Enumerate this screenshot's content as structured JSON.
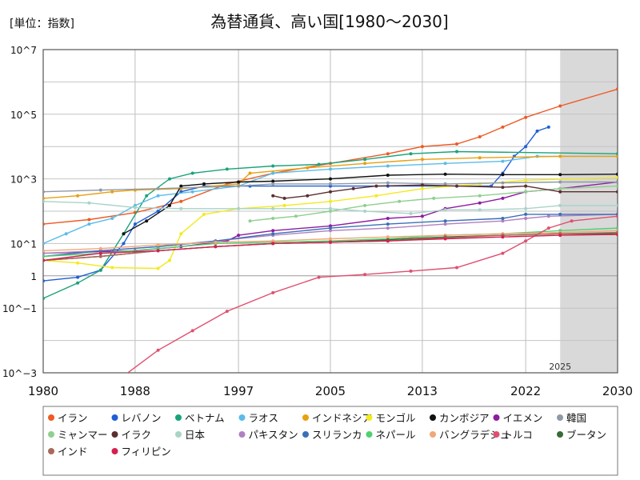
{
  "chart_data": {
    "type": "line",
    "title": "為替通貨、高い国[1980～2030]",
    "unit_label": "[単位：指数]",
    "xlabel": "",
    "ylabel": "",
    "y_scale": "log",
    "xlim": [
      1980,
      2030
    ],
    "ylim_log10": [
      -3,
      7
    ],
    "x_ticks": [
      1980,
      1988,
      1997,
      2005,
      2013,
      2022,
      2030
    ],
    "x_tick_labels": [
      "1980",
      "1988",
      "1997",
      "2005",
      "2013",
      "2022",
      "2030"
    ],
    "y_ticks_log10": [
      -3,
      -1,
      0,
      1,
      3,
      5,
      7
    ],
    "y_tick_labels": [
      "10^−3",
      "10^−1",
      "1",
      "10^1",
      "10^3",
      "10^5",
      "10^7"
    ],
    "forecast_start": 2025,
    "forecast_label": "2025",
    "grid": true,
    "legend_position": "bottom",
    "series": [
      {
        "name": "イラン",
        "color": "#ee5a24",
        "points": [
          [
            1980,
            40
          ],
          [
            1984,
            55
          ],
          [
            1988,
            90
          ],
          [
            1992,
            200
          ],
          [
            1996,
            700
          ],
          [
            2000,
            1500
          ],
          [
            2005,
            3000
          ],
          [
            2010,
            6000
          ],
          [
            2013,
            10000
          ],
          [
            2016,
            12000
          ],
          [
            2018,
            20000
          ],
          [
            2020,
            40000
          ],
          [
            2022,
            80000
          ],
          [
            2025,
            180000
          ],
          [
            2030,
            600000
          ]
        ]
      },
      {
        "name": "レバノン",
        "color": "#1f5fd6",
        "points": [
          [
            1980,
            0.7
          ],
          [
            1983,
            0.9
          ],
          [
            1985,
            1.5
          ],
          [
            1987,
            10
          ],
          [
            1988,
            40
          ],
          [
            1990,
            100
          ],
          [
            1992,
            400
          ],
          [
            1994,
            600
          ],
          [
            1998,
            600
          ],
          [
            2005,
            600
          ],
          [
            2010,
            600
          ],
          [
            2019,
            600
          ],
          [
            2020,
            1500
          ],
          [
            2021,
            5000
          ],
          [
            2022,
            10000
          ],
          [
            2023,
            30000
          ],
          [
            2024,
            40000
          ]
        ]
      },
      {
        "name": "ベトナム",
        "color": "#1aa37a",
        "points": [
          [
            1980,
            0.2
          ],
          [
            1983,
            0.6
          ],
          [
            1985,
            1.5
          ],
          [
            1987,
            20
          ],
          [
            1989,
            300
          ],
          [
            1991,
            1000
          ],
          [
            1993,
            1500
          ],
          [
            1996,
            2000
          ],
          [
            2000,
            2500
          ],
          [
            2004,
            2800
          ],
          [
            2008,
            4000
          ],
          [
            2012,
            6000
          ],
          [
            2016,
            7000
          ],
          [
            2030,
            6000
          ]
        ]
      },
      {
        "name": "ラオス",
        "color": "#5bbce8",
        "points": [
          [
            1980,
            10
          ],
          [
            1982,
            20
          ],
          [
            1984,
            40
          ],
          [
            1986,
            60
          ],
          [
            1988,
            150
          ],
          [
            1990,
            300
          ],
          [
            1993,
            400
          ],
          [
            1997,
            600
          ],
          [
            2000,
            1500
          ],
          [
            2005,
            2000
          ],
          [
            2010,
            2500
          ],
          [
            2015,
            3000
          ],
          [
            2020,
            3500
          ],
          [
            2023,
            5000
          ],
          [
            2030,
            5000
          ]
        ]
      },
      {
        "name": "インドネシア",
        "color": "#e8a012",
        "points": [
          [
            1980,
            250
          ],
          [
            1983,
            300
          ],
          [
            1986,
            400
          ],
          [
            1988,
            450
          ],
          [
            1992,
            500
          ],
          [
            1997,
            700
          ],
          [
            1998,
            1500
          ],
          [
            2003,
            2200
          ],
          [
            2008,
            3000
          ],
          [
            2013,
            4000
          ],
          [
            2018,
            4500
          ],
          [
            2025,
            5000
          ],
          [
            2030,
            5000
          ]
        ]
      },
      {
        "name": "モンゴル",
        "color": "#f3ea1e",
        "points": [
          [
            1980,
            3
          ],
          [
            1983,
            2.5
          ],
          [
            1986,
            1.8
          ],
          [
            1990,
            1.7
          ],
          [
            1991,
            3
          ],
          [
            1992,
            20
          ],
          [
            1994,
            80
          ],
          [
            1997,
            120
          ],
          [
            2001,
            150
          ],
          [
            2005,
            200
          ],
          [
            2009,
            300
          ],
          [
            2013,
            500
          ],
          [
            2018,
            700
          ],
          [
            2022,
            900
          ],
          [
            2030,
            1100
          ]
        ]
      },
      {
        "name": "カンボジア",
        "color": "#111111",
        "points": [
          [
            1987,
            20
          ],
          [
            1989,
            50
          ],
          [
            1991,
            150
          ],
          [
            1992,
            600
          ],
          [
            1994,
            700
          ],
          [
            1997,
            800
          ],
          [
            2000,
            850
          ],
          [
            2005,
            1000
          ],
          [
            2010,
            1300
          ],
          [
            2015,
            1400
          ],
          [
            2020,
            1350
          ],
          [
            2025,
            1350
          ],
          [
            2030,
            1400
          ]
        ]
      },
      {
        "name": "イエメン",
        "color": "#8e1ca0",
        "points": [
          [
            1980,
            5
          ],
          [
            1988,
            6
          ],
          [
            1992,
            8
          ],
          [
            1996,
            12
          ],
          [
            1997,
            18
          ],
          [
            2000,
            25
          ],
          [
            2005,
            35
          ],
          [
            2010,
            60
          ],
          [
            2013,
            70
          ],
          [
            2015,
            120
          ],
          [
            2018,
            180
          ],
          [
            2020,
            250
          ],
          [
            2022,
            400
          ],
          [
            2025,
            500
          ],
          [
            2030,
            800
          ]
        ]
      },
      {
        "name": "韓国",
        "color": "#8e9aa6",
        "points": [
          [
            1980,
            400
          ],
          [
            1985,
            450
          ],
          [
            1990,
            500
          ],
          [
            1997,
            600
          ],
          [
            2000,
            700
          ],
          [
            2005,
            700
          ],
          [
            2010,
            750
          ],
          [
            2015,
            700
          ],
          [
            2020,
            750
          ],
          [
            2025,
            800
          ],
          [
            2030,
            800
          ]
        ]
      },
      {
        "name": "ミャンマー",
        "color": "#8fcf8f",
        "points": [
          [
            1998,
            50
          ],
          [
            2000,
            60
          ],
          [
            2002,
            70
          ],
          [
            2005,
            100
          ],
          [
            2008,
            150
          ],
          [
            2011,
            200
          ],
          [
            2014,
            250
          ],
          [
            2018,
            300
          ],
          [
            2022,
            400
          ],
          [
            2025,
            500
          ],
          [
            2030,
            600
          ]
        ]
      },
      {
        "name": "イラク",
        "color": "#5b2e2e",
        "points": [
          [
            2000,
            300
          ],
          [
            2001,
            250
          ],
          [
            2003,
            300
          ],
          [
            2005,
            400
          ],
          [
            2007,
            500
          ],
          [
            2009,
            600
          ],
          [
            2013,
            650
          ],
          [
            2016,
            600
          ],
          [
            2020,
            550
          ],
          [
            2022,
            600
          ],
          [
            2025,
            400
          ],
          [
            2030,
            400
          ]
        ]
      },
      {
        "name": "日本",
        "color": "#a8d4c8",
        "points": [
          [
            1980,
            200
          ],
          [
            1984,
            180
          ],
          [
            1988,
            130
          ],
          [
            1992,
            120
          ],
          [
            1997,
            120
          ],
          [
            2000,
            120
          ],
          [
            2005,
            120
          ],
          [
            2008,
            100
          ],
          [
            2012,
            85
          ],
          [
            2015,
            110
          ],
          [
            2018,
            110
          ],
          [
            2022,
            120
          ],
          [
            2025,
            150
          ],
          [
            2030,
            150
          ]
        ]
      },
      {
        "name": "パキスタン",
        "color": "#b080c0",
        "points": [
          [
            1980,
            5
          ],
          [
            1985,
            6
          ],
          [
            1990,
            8
          ],
          [
            1995,
            12
          ],
          [
            2000,
            18
          ],
          [
            2005,
            25
          ],
          [
            2010,
            30
          ],
          [
            2015,
            40
          ],
          [
            2020,
            50
          ],
          [
            2022,
            60
          ],
          [
            2024,
            70
          ],
          [
            2030,
            80
          ]
        ]
      },
      {
        "name": "スリランカ",
        "color": "#3a70b8",
        "points": [
          [
            1980,
            4
          ],
          [
            1985,
            6
          ],
          [
            1990,
            8
          ],
          [
            1995,
            12
          ],
          [
            2000,
            20
          ],
          [
            2005,
            30
          ],
          [
            2010,
            40
          ],
          [
            2015,
            50
          ],
          [
            2020,
            60
          ],
          [
            2022,
            80
          ],
          [
            2025,
            80
          ],
          [
            2030,
            80
          ]
        ]
      },
      {
        "name": "ネパール",
        "color": "#50d070",
        "points": [
          [
            1980,
            4
          ],
          [
            1985,
            5
          ],
          [
            1990,
            7
          ],
          [
            1995,
            10
          ],
          [
            2000,
            11
          ],
          [
            2005,
            12
          ],
          [
            2010,
            14
          ],
          [
            2015,
            18
          ],
          [
            2020,
            20
          ],
          [
            2025,
            25
          ],
          [
            2030,
            30
          ]
        ]
      },
      {
        "name": "バングラデシュ",
        "color": "#f0a878",
        "points": [
          [
            1980,
            6
          ],
          [
            1985,
            7
          ],
          [
            1990,
            9
          ],
          [
            1995,
            11
          ],
          [
            2000,
            12
          ],
          [
            2005,
            14
          ],
          [
            2010,
            16
          ],
          [
            2015,
            18
          ],
          [
            2020,
            20
          ],
          [
            2025,
            22
          ],
          [
            2030,
            25
          ]
        ]
      },
      {
        "name": "トルコ",
        "color": "#e04f6f",
        "points": [
          [
            1980,
            0.0005
          ],
          [
            1987,
            0.0008
          ],
          [
            1990,
            0.005
          ],
          [
            1993,
            0.02
          ],
          [
            1996,
            0.08
          ],
          [
            2000,
            0.3
          ],
          [
            2004,
            0.9
          ],
          [
            2008,
            1.1
          ],
          [
            2012,
            1.4
          ],
          [
            2016,
            1.8
          ],
          [
            2020,
            5
          ],
          [
            2022,
            12
          ],
          [
            2024,
            30
          ],
          [
            2026,
            50
          ],
          [
            2030,
            70
          ]
        ]
      },
      {
        "name": "ブータン",
        "color": "#3a6a3a",
        "points": [
          [
            1980,
            3
          ],
          [
            1985,
            4
          ],
          [
            1990,
            6
          ],
          [
            1995,
            8
          ],
          [
            2000,
            10
          ],
          [
            2005,
            11
          ],
          [
            2010,
            13
          ],
          [
            2015,
            16
          ],
          [
            2020,
            18
          ],
          [
            2025,
            20
          ],
          [
            2030,
            20
          ]
        ]
      },
      {
        "name": "インド",
        "color": "#a86a5a",
        "points": [
          [
            1980,
            3
          ],
          [
            1985,
            4
          ],
          [
            1990,
            6
          ],
          [
            1995,
            8
          ],
          [
            2000,
            10
          ],
          [
            2005,
            11
          ],
          [
            2010,
            12
          ],
          [
            2015,
            15
          ],
          [
            2020,
            18
          ],
          [
            2025,
            20
          ],
          [
            2030,
            22
          ]
        ]
      },
      {
        "name": "フィリピン",
        "color": "#d42050",
        "points": [
          [
            1980,
            3
          ],
          [
            1985,
            5
          ],
          [
            1990,
            6
          ],
          [
            1995,
            8
          ],
          [
            2000,
            10
          ],
          [
            2005,
            11
          ],
          [
            2010,
            12
          ],
          [
            2015,
            14
          ],
          [
            2020,
            16
          ],
          [
            2025,
            18
          ],
          [
            2030,
            19
          ]
        ]
      }
    ]
  }
}
